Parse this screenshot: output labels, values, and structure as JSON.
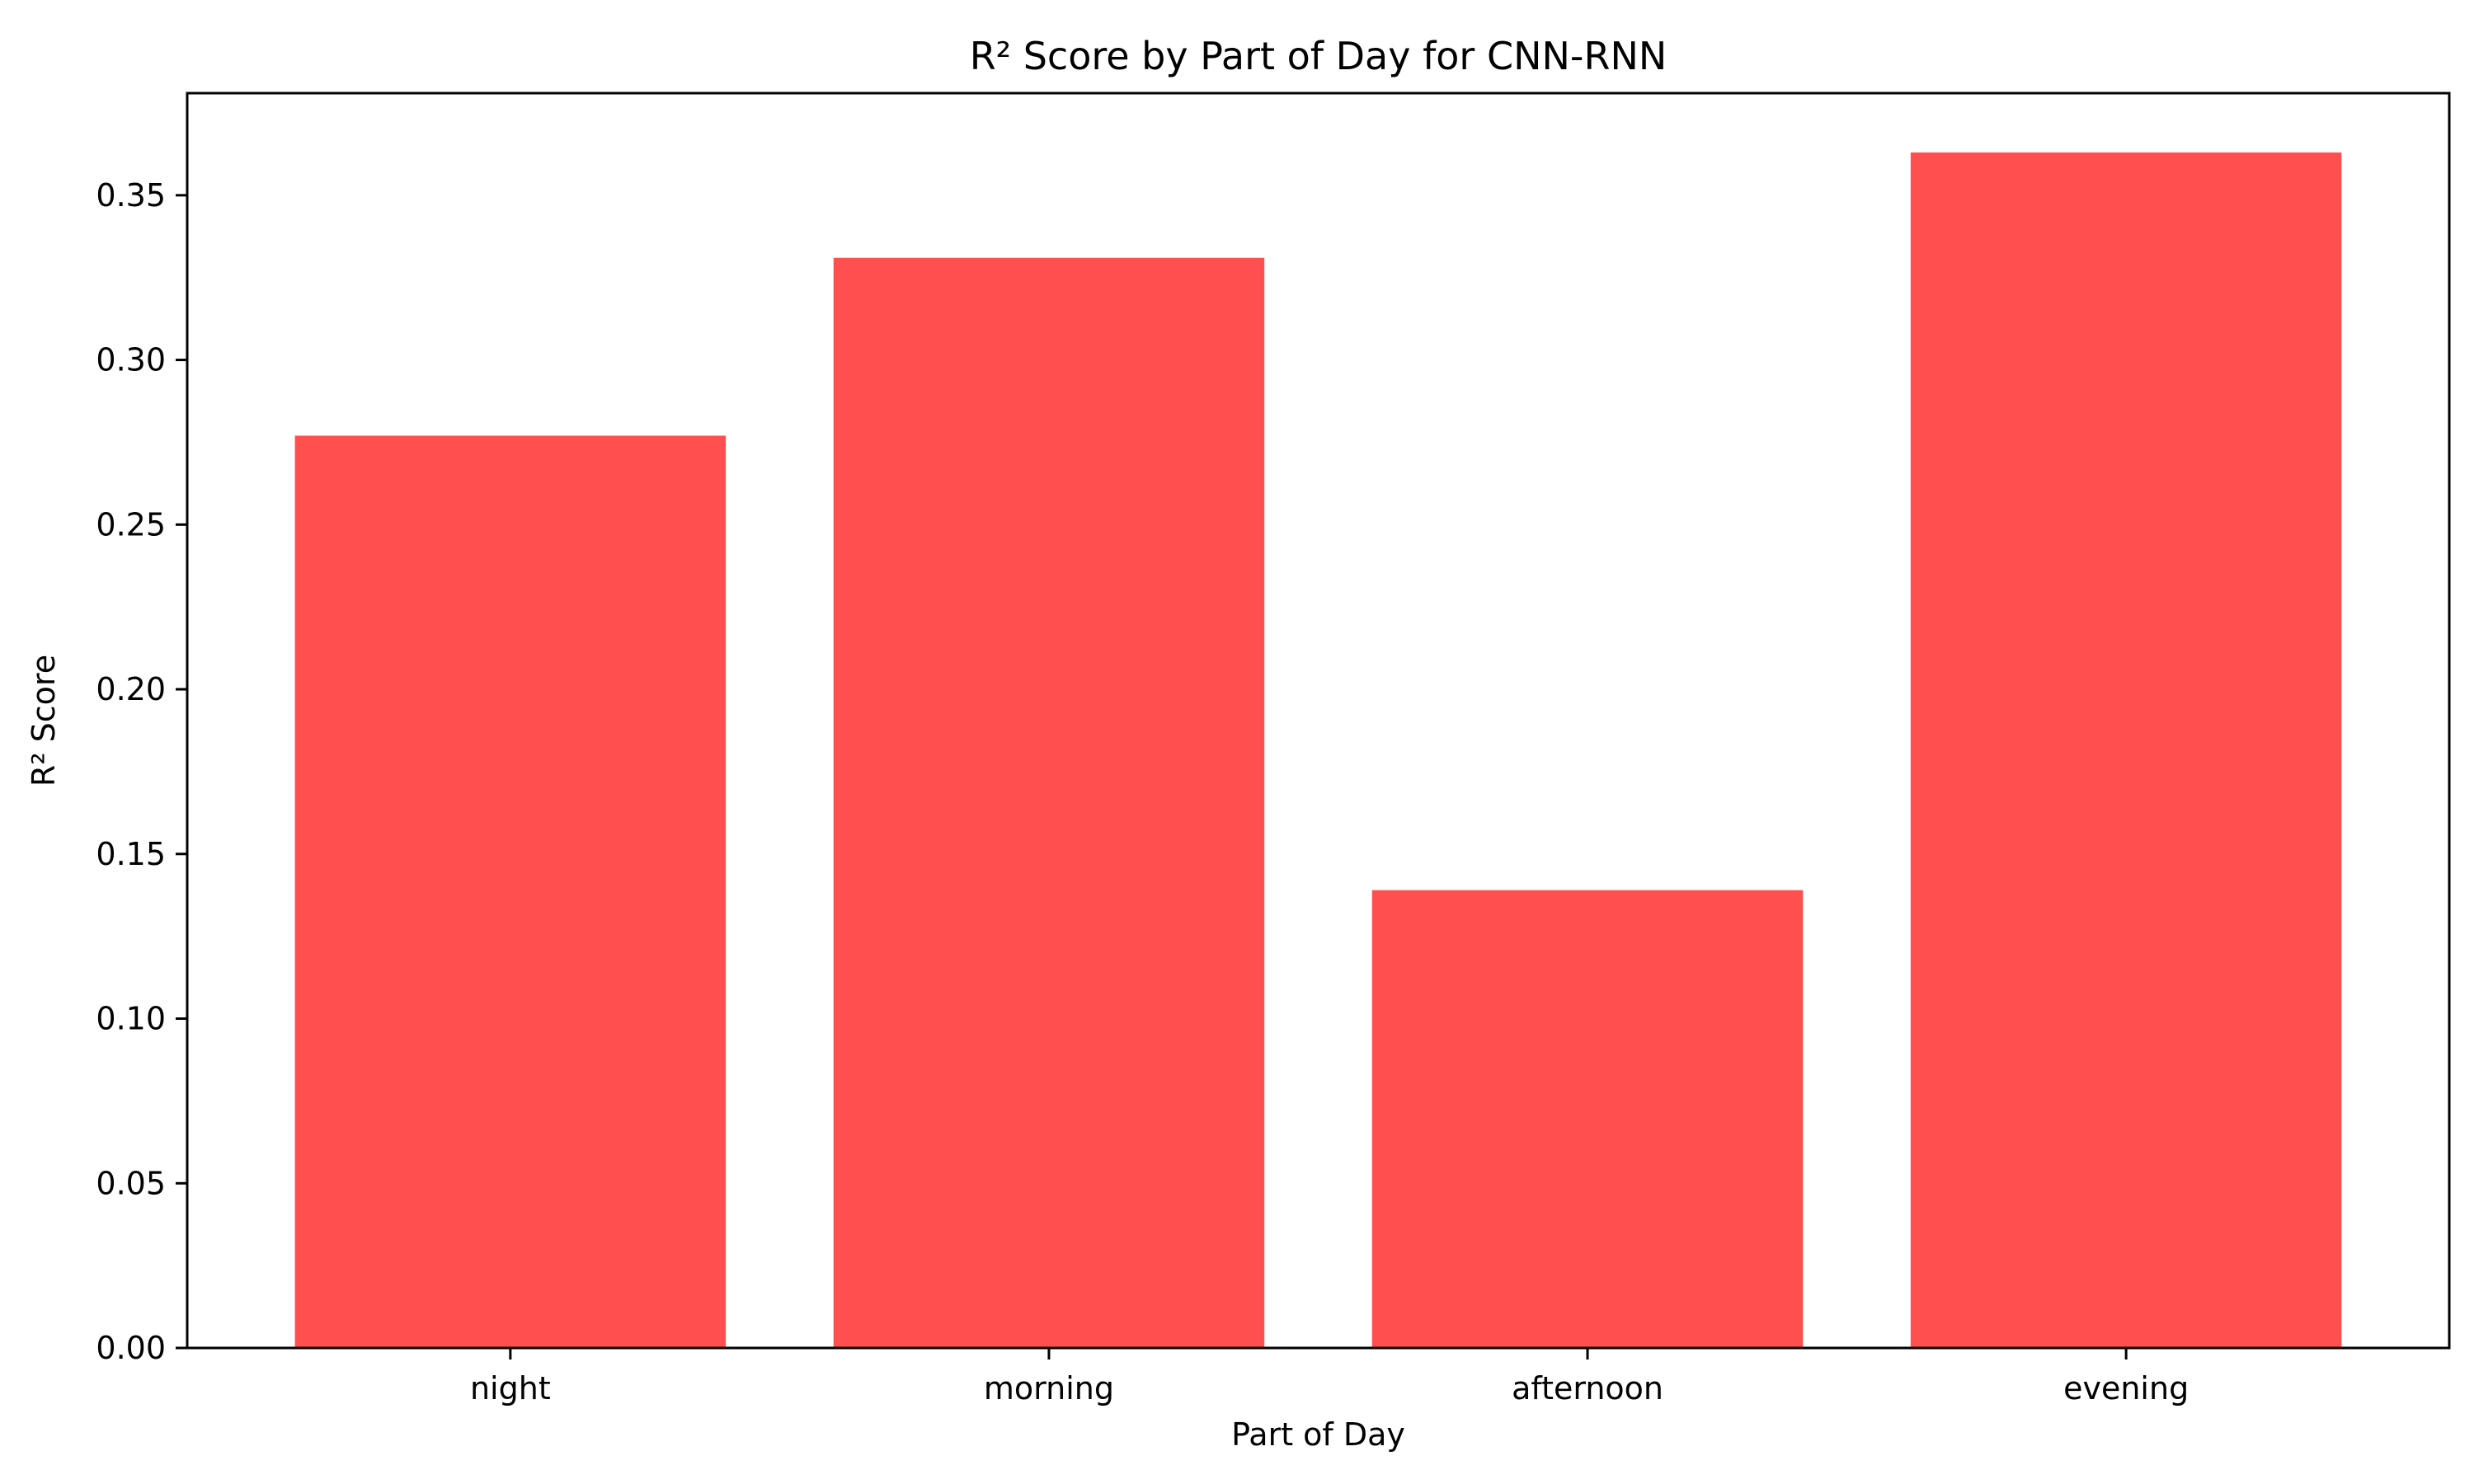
{
  "chart_data": {
    "type": "bar",
    "title": "R² Score by Part of Day for CNN-RNN",
    "xlabel": "Part of Day",
    "ylabel": "R² Score",
    "categories": [
      "night",
      "morning",
      "afternoon",
      "evening"
    ],
    "values": [
      0.277,
      0.331,
      0.139,
      0.363
    ],
    "ylim": [
      0,
      0.381
    ],
    "yticks": [
      0.0,
      0.05,
      0.1,
      0.15,
      0.2,
      0.25,
      0.3,
      0.35
    ],
    "ytick_labels": [
      "0.00",
      "0.05",
      "0.10",
      "0.15",
      "0.20",
      "0.25",
      "0.30",
      "0.35"
    ],
    "grid": false,
    "legend": "none",
    "bar_color": "#ff4f4f"
  }
}
